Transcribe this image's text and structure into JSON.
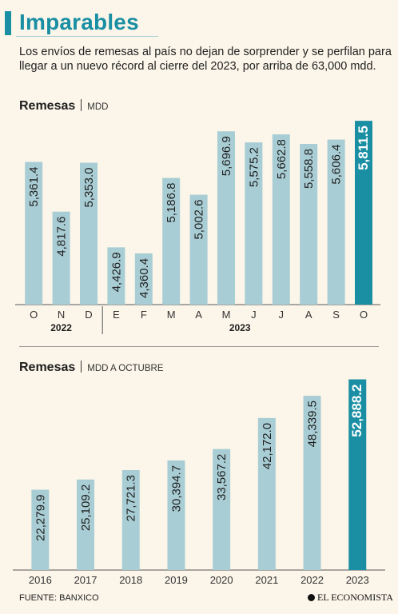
{
  "header": {
    "title": "Imparables",
    "subtitle": "Los envíos de remesas al país no dejan de sorprender y se perfilan para llegar a un nuevo récord al cierre del 2023, por arriba de 63,000 mdd."
  },
  "chart1_head": {
    "title": "Remesas",
    "unit": "MDD"
  },
  "chart2_head": {
    "title": "Remesas",
    "unit": "MDD A OCTUBRE"
  },
  "footer": {
    "source": "FUENTE: BANXICO",
    "brand": "EL ECONOMISTA"
  },
  "colors": {
    "bar": "#a9cdd4",
    "highlight": "#1a8fa3",
    "title": "#1a8fa3",
    "background": "#fcf6ea"
  },
  "chart_data": [
    {
      "type": "bar",
      "title": "Remesas",
      "ylabel": "MDD",
      "categories": [
        "O",
        "N",
        "D",
        "E",
        "F",
        "M",
        "A",
        "M",
        "J",
        "J",
        "A",
        "S",
        "O"
      ],
      "labels": [
        "5,361.4",
        "4,817.6",
        "5,353.0",
        "4,426.9",
        "4,360.4",
        "5,186.8",
        "5,002.6",
        "5,696.9",
        "5,575.2",
        "5,662.8",
        "5,558.8",
        "5,606.4",
        "5,811.5"
      ],
      "values": [
        5361.4,
        4817.6,
        5353.0,
        4426.9,
        4360.4,
        5186.8,
        5002.6,
        5696.9,
        5575.2,
        5662.8,
        5558.8,
        5606.4,
        5811.5
      ],
      "groups": [
        {
          "label": "2022",
          "start": 0,
          "end": 2
        },
        {
          "label": "2023",
          "start": 3,
          "end": 12
        }
      ],
      "highlight_index": 12,
      "ylim": [
        3800,
        5900
      ]
    },
    {
      "type": "bar",
      "title": "Remesas",
      "ylabel": "MDD A OCTUBRE",
      "categories": [
        "2016",
        "2017",
        "2018",
        "2019",
        "2020",
        "2021",
        "2022",
        "2023"
      ],
      "labels": [
        "22,279.9",
        "25,109.2",
        "27,721.3",
        "30,394.7",
        "33,567.2",
        "42,172.0",
        "48,339.5",
        "52,888.2"
      ],
      "values": [
        22279.9,
        25109.2,
        27721.3,
        30394.7,
        33567.2,
        42172.0,
        48339.5,
        52888.2
      ],
      "highlight_index": 7,
      "ylim": [
        0,
        55000
      ]
    }
  ]
}
